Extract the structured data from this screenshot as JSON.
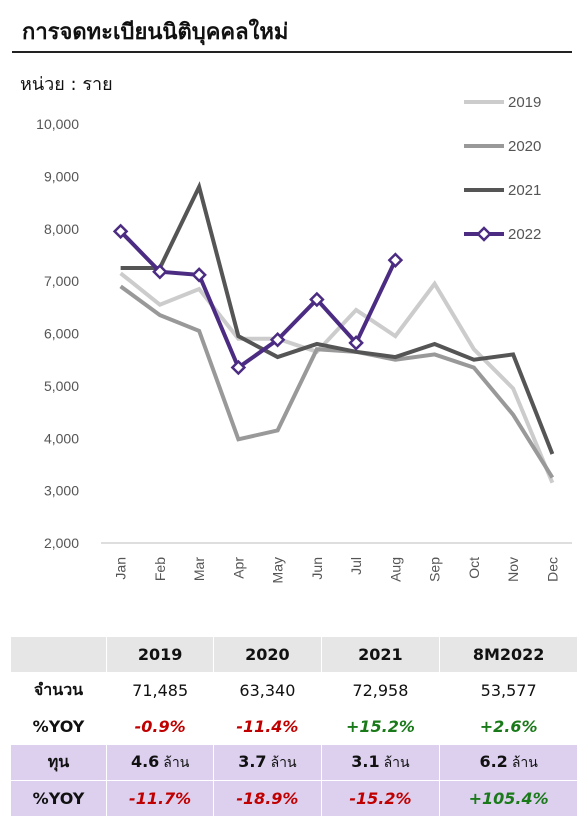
{
  "title": "การจดทะเบียนนิติบุคคลใหม่",
  "unit_label": "หน่วย : ราย",
  "chart_data": {
    "type": "line",
    "categories": [
      "Jan",
      "Feb",
      "Mar",
      "Apr",
      "May",
      "Jun",
      "Jul",
      "Aug",
      "Sep",
      "Oct",
      "Nov",
      "Dec"
    ],
    "ylim": [
      2000,
      10000
    ],
    "yticks": [
      "2,000",
      "3,000",
      "4,000",
      "5,000",
      "6,000",
      "7,000",
      "8,000",
      "9,000",
      "10,000"
    ],
    "grid": false,
    "legend_position": "top-right",
    "series": [
      {
        "name": "2019",
        "color": "#cccccc",
        "marker": "none",
        "values": [
          7150,
          6550,
          6850,
          5900,
          5900,
          5650,
          6450,
          5950,
          6950,
          5700,
          4950,
          3150
        ]
      },
      {
        "name": "2020",
        "color": "#999999",
        "marker": "none",
        "values": [
          6900,
          6350,
          6050,
          3980,
          4150,
          5700,
          5650,
          5500,
          5600,
          5350,
          4450,
          3250
        ]
      },
      {
        "name": "2021",
        "color": "#555555",
        "marker": "none",
        "values": [
          7250,
          7250,
          8800,
          5950,
          5550,
          5800,
          5650,
          5550,
          5800,
          5500,
          5600,
          3700
        ]
      },
      {
        "name": "2022",
        "color": "#4b2c82",
        "marker": "diamond",
        "values": [
          7950,
          7180,
          7120,
          5350,
          5880,
          6650,
          5820,
          7400,
          null,
          null,
          null,
          null
        ]
      }
    ]
  },
  "table": {
    "headers": [
      "",
      "2019",
      "2020",
      "2021",
      "8M2022"
    ],
    "rows": [
      {
        "label": "จำนวน",
        "style": "plain",
        "cells": [
          {
            "text": "71,485",
            "cls": ""
          },
          {
            "text": "63,340",
            "cls": ""
          },
          {
            "text": "72,958",
            "cls": ""
          },
          {
            "text": "53,577",
            "cls": ""
          }
        ]
      },
      {
        "label": "%YOY",
        "style": "plain",
        "cells": [
          {
            "text": "-0.9%",
            "cls": "neg"
          },
          {
            "text": "-11.4%",
            "cls": "neg"
          },
          {
            "text": "+15.2%",
            "cls": "pos"
          },
          {
            "text": "+2.6%",
            "cls": "pos"
          }
        ]
      },
      {
        "label": "ทุน",
        "style": "purple",
        "cells": [
          {
            "text": "4.6",
            "suffix": "ล้าน",
            "cls": "val-bold"
          },
          {
            "text": "3.7",
            "suffix": "ล้าน",
            "cls": "val-bold"
          },
          {
            "text": "3.1",
            "suffix": "ล้าน",
            "cls": "val-bold"
          },
          {
            "text": "6.2",
            "suffix": "ล้าน",
            "cls": "val-bold"
          }
        ]
      },
      {
        "label": "%YOY",
        "style": "purple",
        "cells": [
          {
            "text": "-11.7%",
            "cls": "neg"
          },
          {
            "text": "-18.9%",
            "cls": "neg"
          },
          {
            "text": "-15.2%",
            "cls": "neg"
          },
          {
            "text": "+105.4%",
            "cls": "pos"
          }
        ]
      }
    ]
  }
}
